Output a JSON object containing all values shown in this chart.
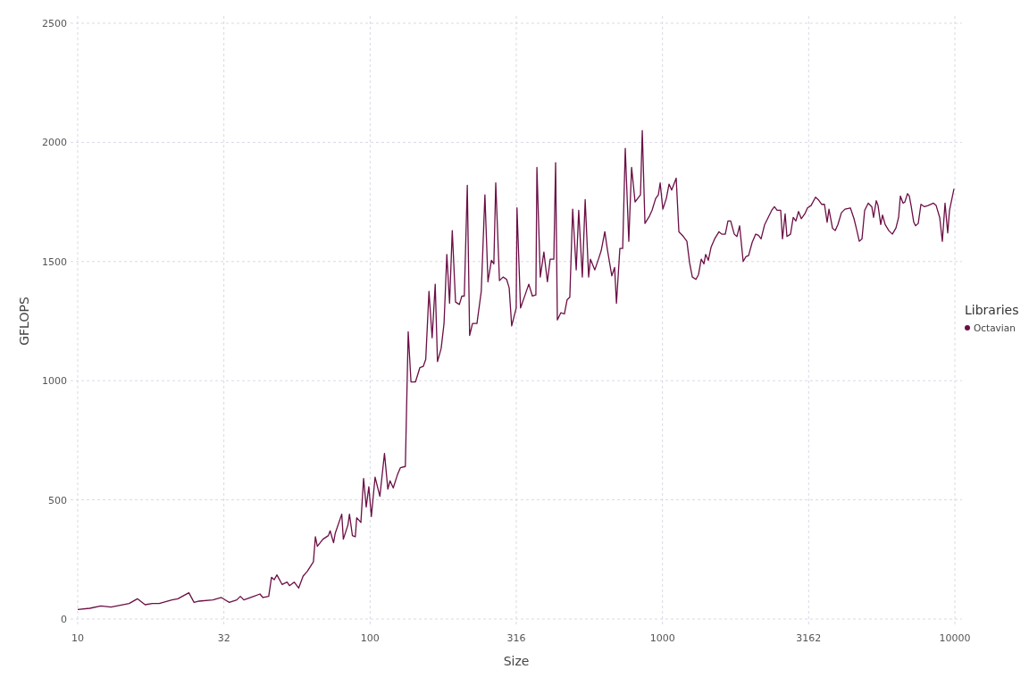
{
  "chart_data": {
    "type": "line",
    "xlabel": "Size",
    "ylabel": "GFLOPS",
    "legend_title": "Libraries",
    "legend": "right",
    "grid": true,
    "line_style": "solid",
    "log": "x",
    "xlim": [
      10,
      10000
    ],
    "xticks": [
      10,
      {
        "value": 31.62,
        "label": "32"
      },
      100,
      {
        "value": 316.2,
        "label": "316"
      },
      1000,
      {
        "value": 3162,
        "label": "3162"
      },
      10000
    ],
    "ylim": [
      0,
      2500
    ],
    "yticks": [
      0,
      500,
      1000,
      1500,
      2000,
      2500
    ],
    "x": [
      10,
      11,
      12,
      13,
      15,
      16,
      17,
      18,
      19,
      21,
      22,
      24,
      25,
      26,
      29,
      31,
      33,
      35,
      36,
      37,
      40,
      42,
      43,
      45,
      46,
      47,
      48,
      50,
      52,
      53,
      55,
      57,
      59,
      61,
      64,
      65,
      66,
      69,
      72,
      73,
      75,
      76,
      80,
      81,
      84,
      85,
      87,
      89,
      90,
      93,
      95,
      97,
      99,
      101,
      104,
      108,
      112,
      115,
      117,
      120,
      124,
      127,
      132,
      135,
      138,
      143,
      148,
      152,
      155,
      159,
      163,
      167,
      170,
      175,
      179,
      183,
      187,
      191,
      196,
      202,
      206,
      210,
      215,
      219,
      224,
      232,
      240,
      247,
      253,
      260,
      265,
      269,
      277,
      285,
      293,
      299,
      305,
      316,
      318,
      327,
      339,
      349,
      359,
      369,
      372,
      382,
      393,
      404,
      413,
      425,
      431,
      437,
      449,
      462,
      472,
      482,
      493,
      507,
      517,
      532,
      544,
      559,
      567,
      587,
      604,
      617,
      635,
      648,
      671,
      686,
      696,
      715,
      731,
      746,
      767,
      784,
      806,
      823,
      841,
      853,
      871,
      902,
      921,
      948,
      968,
      982,
      1003,
      1031,
      1053,
      1075,
      1114,
      1138,
      1179,
      1212,
      1238,
      1265,
      1301,
      1328,
      1357,
      1386,
      1405,
      1435,
      1466,
      1508,
      1561,
      1595,
      1640,
      1675,
      1711,
      1760,
      1797,
      1836,
      1888,
      1928,
      1970,
      2026,
      2084,
      2128,
      2174,
      2236,
      2299,
      2364,
      2415,
      2466,
      2537,
      2573,
      2628,
      2665,
      2741,
      2800,
      2859,
      2920,
      2983,
      3068,
      3133,
      3222,
      3338,
      3409,
      3506,
      3581,
      3658,
      3710,
      3815,
      3897,
      3980,
      4093,
      4210,
      4392,
      4518,
      4613,
      4711,
      4812,
      4915,
      5055,
      5199,
      5272,
      5384,
      5461,
      5578,
      5657,
      5777,
      5943,
      6112,
      6286,
      6420,
      6511,
      6650,
      6745,
      6889,
      6984,
      7084,
      7235,
      7338,
      7495,
      7655,
      7873,
      8096,
      8450,
      8630,
      8875,
      9061,
      9255,
      9454,
      9587,
      9931
    ],
    "series": [
      {
        "name": "Octavian",
        "color": "#6b0f45",
        "values": [
          40,
          45,
          55,
          50,
          65,
          85,
          60,
          65,
          65,
          80,
          85,
          110,
          70,
          75,
          80,
          90,
          70,
          80,
          95,
          80,
          95,
          105,
          90,
          95,
          175,
          165,
          185,
          145,
          155,
          140,
          155,
          130,
          180,
          200,
          240,
          345,
          305,
          335,
          350,
          370,
          320,
          360,
          440,
          335,
          395,
          440,
          350,
          345,
          425,
          405,
          590,
          470,
          555,
          430,
          595,
          515,
          695,
          545,
          580,
          550,
          605,
          635,
          640,
          1205,
          995,
          995,
          1055,
          1060,
          1090,
          1375,
          1180,
          1405,
          1080,
          1135,
          1240,
          1530,
          1325,
          1630,
          1330,
          1320,
          1355,
          1355,
          1820,
          1190,
          1240,
          1240,
          1375,
          1780,
          1415,
          1505,
          1490,
          1830,
          1420,
          1435,
          1425,
          1390,
          1230,
          1305,
          1725,
          1305,
          1360,
          1405,
          1355,
          1360,
          1895,
          1435,
          1540,
          1415,
          1510,
          1510,
          1915,
          1255,
          1285,
          1280,
          1340,
          1350,
          1720,
          1465,
          1715,
          1435,
          1760,
          1435,
          1510,
          1465,
          1510,
          1545,
          1625,
          1550,
          1440,
          1475,
          1325,
          1555,
          1555,
          1975,
          1585,
          1895,
          1750,
          1765,
          1780,
          2050,
          1660,
          1690,
          1715,
          1765,
          1780,
          1830,
          1720,
          1765,
          1825,
          1800,
          1850,
          1625,
          1605,
          1585,
          1495,
          1435,
          1425,
          1445,
          1510,
          1490,
          1530,
          1505,
          1560,
          1595,
          1625,
          1615,
          1615,
          1670,
          1670,
          1615,
          1605,
          1650,
          1500,
          1520,
          1525,
          1580,
          1615,
          1610,
          1595,
          1655,
          1685,
          1715,
          1730,
          1715,
          1715,
          1595,
          1700,
          1605,
          1615,
          1685,
          1670,
          1710,
          1680,
          1700,
          1725,
          1735,
          1770,
          1760,
          1740,
          1740,
          1665,
          1720,
          1640,
          1630,
          1655,
          1705,
          1720,
          1725,
          1680,
          1635,
          1585,
          1595,
          1715,
          1745,
          1730,
          1685,
          1755,
          1735,
          1655,
          1695,
          1655,
          1630,
          1615,
          1640,
          1685,
          1775,
          1745,
          1750,
          1785,
          1775,
          1735,
          1665,
          1650,
          1660,
          1740,
          1730,
          1735,
          1745,
          1735,
          1685,
          1585,
          1745,
          1620,
          1715,
          1805
        ]
      }
    ]
  }
}
